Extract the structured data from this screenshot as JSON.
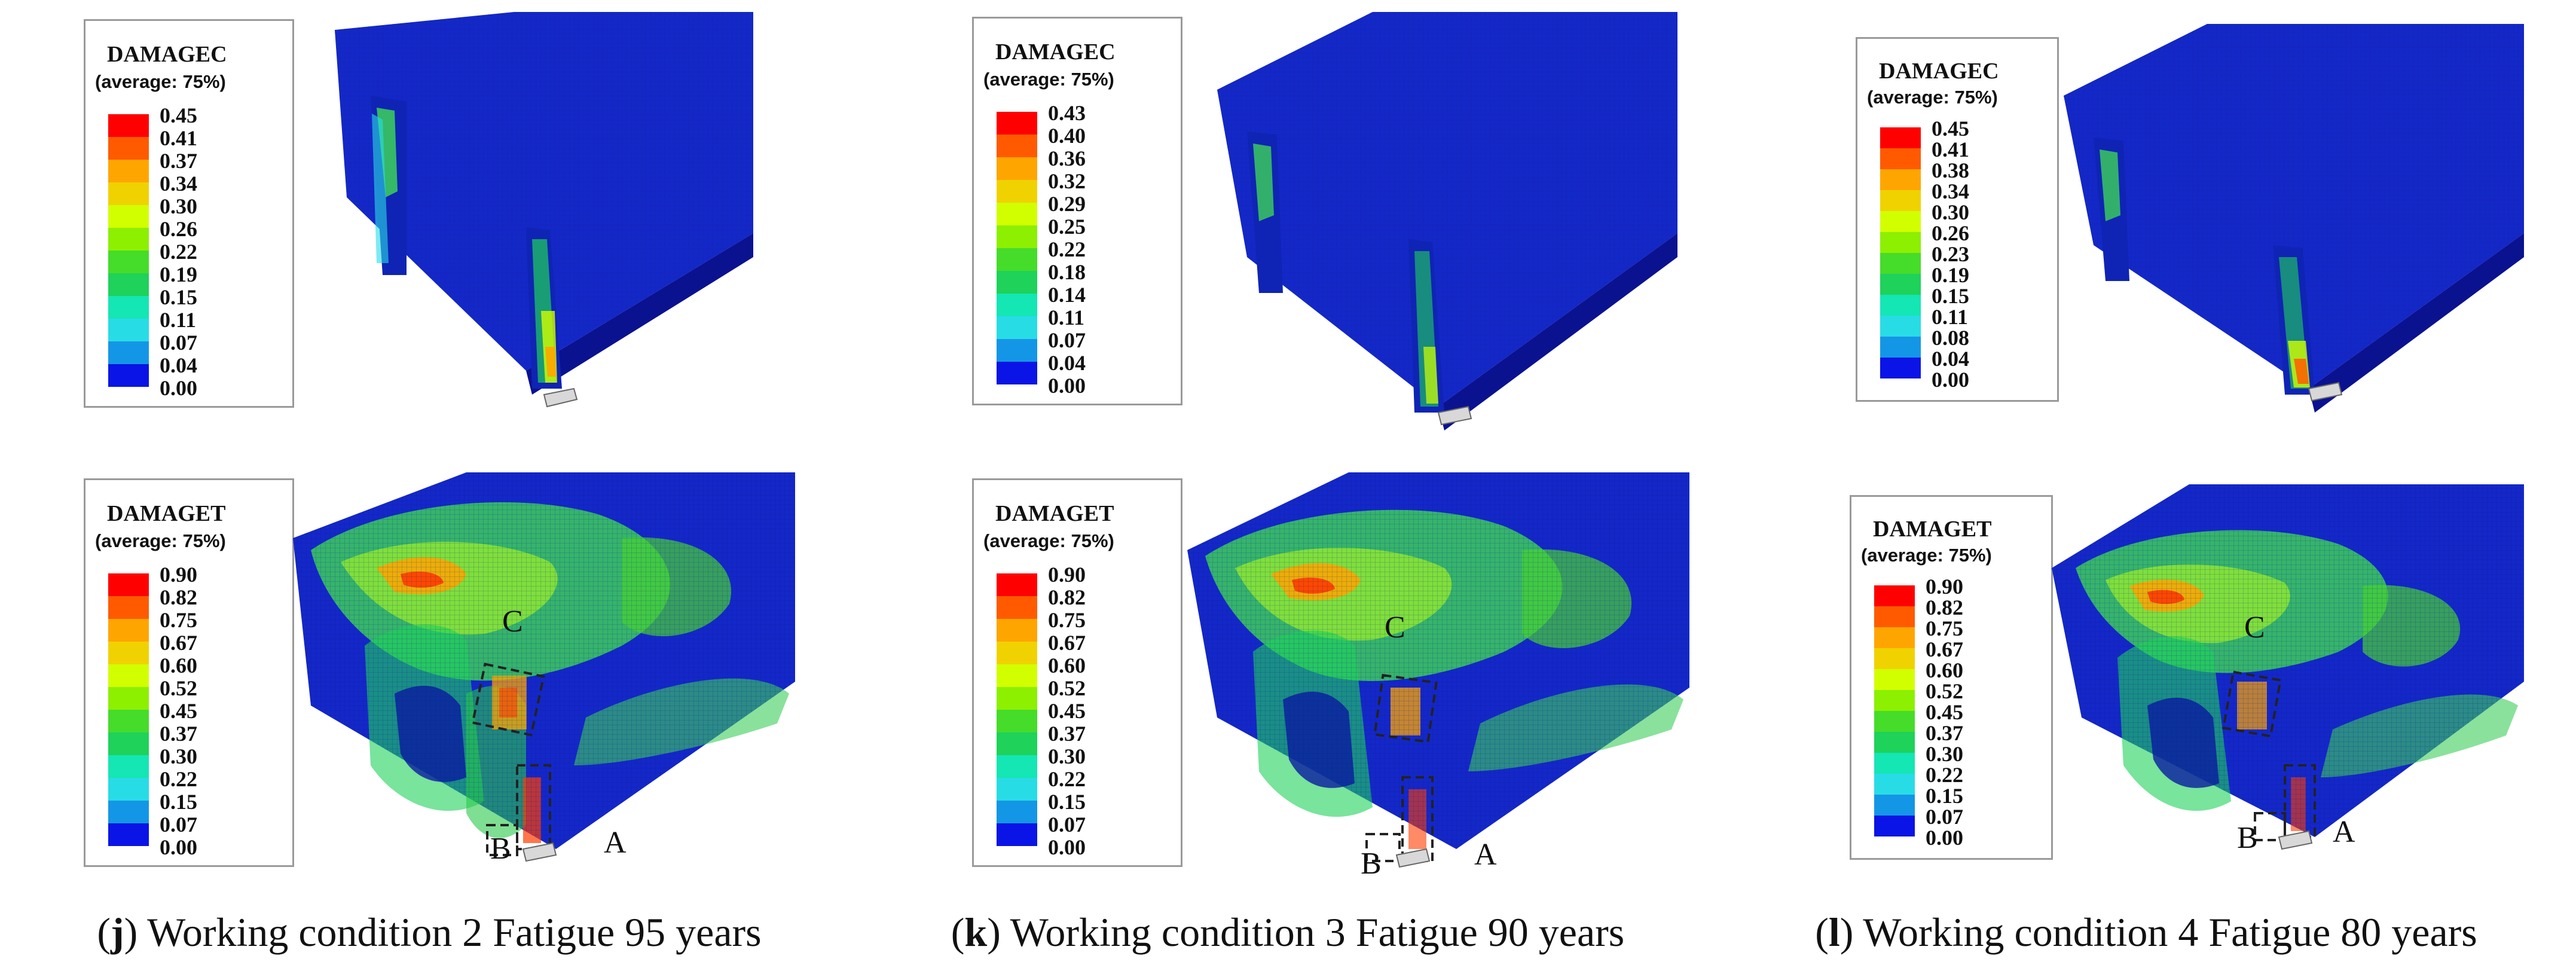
{
  "panels": [
    {
      "id": "j",
      "caption_letter": "j",
      "caption_text": "Working condition 2 Fatigue 95 years",
      "compression": {
        "title": "DAMAGEC",
        "subtitle": "(average: 75%)",
        "values": [
          "0.45",
          "0.41",
          "0.37",
          "0.34",
          "0.30",
          "0.26",
          "0.22",
          "0.19",
          "0.15",
          "0.11",
          "0.07",
          "0.04",
          "0.00"
        ]
      },
      "tension": {
        "title": "DAMAGET",
        "subtitle": "(average: 75%)",
        "values": [
          "0.90",
          "0.82",
          "0.75",
          "0.67",
          "0.60",
          "0.52",
          "0.45",
          "0.37",
          "0.30",
          "0.22",
          "0.15",
          "0.07",
          "0.00"
        ]
      },
      "markers": [
        "C",
        "B",
        "A"
      ]
    },
    {
      "id": "k",
      "caption_letter": "k",
      "caption_text": "Working condition 3 Fatigue 90 years",
      "compression": {
        "title": "DAMAGEC",
        "subtitle": "(average: 75%)",
        "values": [
          "0.43",
          "0.40",
          "0.36",
          "0.32",
          "0.29",
          "0.25",
          "0.22",
          "0.18",
          "0.14",
          "0.11",
          "0.07",
          "0.04",
          "0.00"
        ]
      },
      "tension": {
        "title": "DAMAGET",
        "subtitle": "(average: 75%)",
        "values": [
          "0.90",
          "0.82",
          "0.75",
          "0.67",
          "0.60",
          "0.52",
          "0.45",
          "0.37",
          "0.30",
          "0.22",
          "0.15",
          "0.07",
          "0.00"
        ]
      },
      "markers": [
        "C",
        "B",
        "A"
      ]
    },
    {
      "id": "l",
      "caption_letter": "l",
      "caption_text": "Working condition 4 Fatigue 80 years",
      "compression": {
        "title": "DAMAGEC",
        "subtitle": "(average: 75%)",
        "values": [
          "0.45",
          "0.41",
          "0.38",
          "0.34",
          "0.30",
          "0.26",
          "0.23",
          "0.19",
          "0.15",
          "0.11",
          "0.08",
          "0.04",
          "0.00"
        ]
      },
      "tension": {
        "title": "DAMAGET",
        "subtitle": "(average: 75%)",
        "values": [
          "0.90",
          "0.82",
          "0.75",
          "0.67",
          "0.60",
          "0.52",
          "0.45",
          "0.37",
          "0.30",
          "0.22",
          "0.15",
          "0.07",
          "0.00"
        ]
      },
      "markers": [
        "C",
        "B",
        "A"
      ]
    }
  ],
  "colormap": [
    "#ff0000",
    "#ff5a00",
    "#ffa500",
    "#f0d200",
    "#d2ff00",
    "#8cf000",
    "#46dc2a",
    "#1ed25a",
    "#14e6b4",
    "#28dce6",
    "#1496e6",
    "#1450dc",
    "#0a14e6"
  ]
}
